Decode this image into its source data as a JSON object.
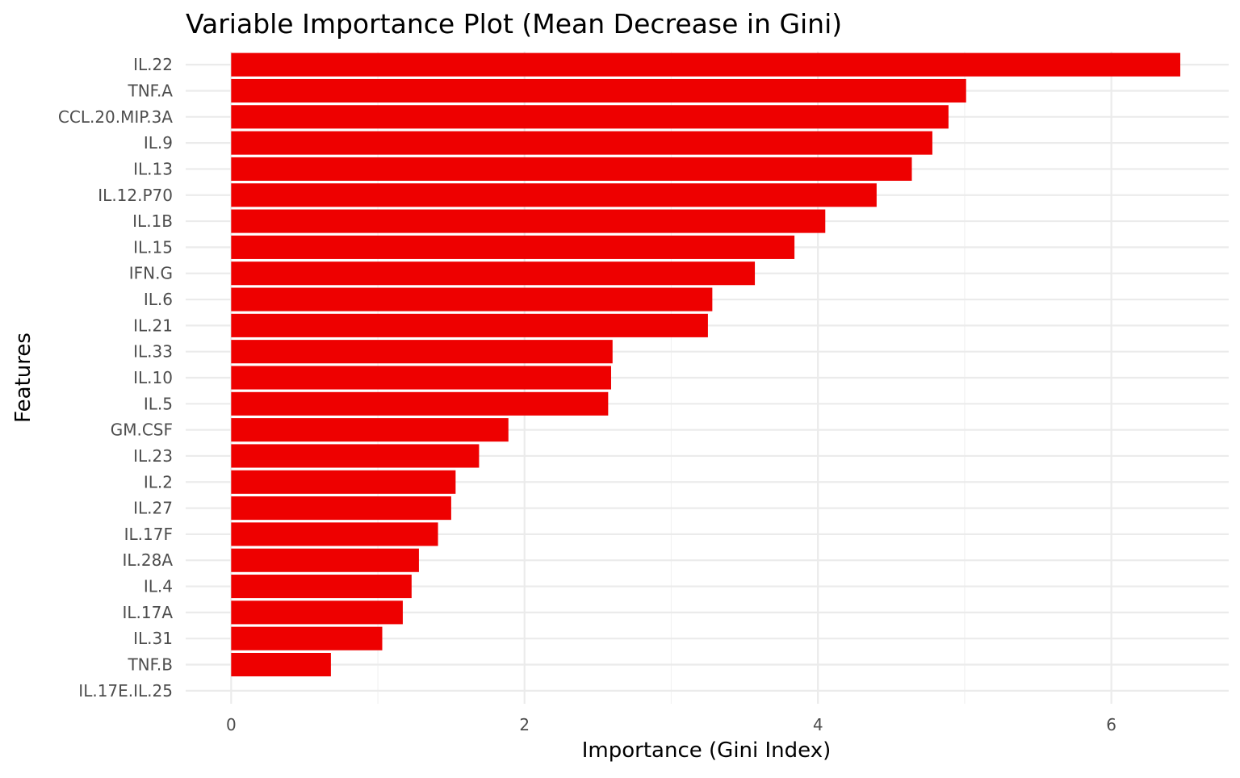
{
  "chart_data": {
    "type": "bar",
    "orientation": "horizontal",
    "title": "Variable Importance Plot (Mean Decrease in Gini)",
    "xlabel": "Importance (Gini Index)",
    "ylabel": "Features",
    "xlim": [
      -0.31,
      6.8
    ],
    "x_ticks": [
      0,
      2,
      4,
      6
    ],
    "grid": true,
    "legend": "none",
    "bar_color": "#ee0000",
    "categories": [
      "IL.22",
      "TNF.A",
      "CCL.20.MIP.3A",
      "IL.9",
      "IL.13",
      "IL.12.P70",
      "IL.1B",
      "IL.15",
      "IFN.G",
      "IL.6",
      "IL.21",
      "IL.33",
      "IL.10",
      "IL.5",
      "GM.CSF",
      "IL.23",
      "IL.2",
      "IL.27",
      "IL.17F",
      "IL.28A",
      "IL.4",
      "IL.17A",
      "IL.31",
      "TNF.B",
      "IL.17E.IL.25"
    ],
    "values": [
      6.47,
      5.01,
      4.89,
      4.78,
      4.64,
      4.4,
      4.05,
      3.84,
      3.57,
      3.28,
      3.25,
      2.6,
      2.59,
      2.57,
      1.89,
      1.69,
      1.53,
      1.5,
      1.41,
      1.28,
      1.23,
      1.17,
      1.03,
      0.68,
      0.0
    ]
  }
}
